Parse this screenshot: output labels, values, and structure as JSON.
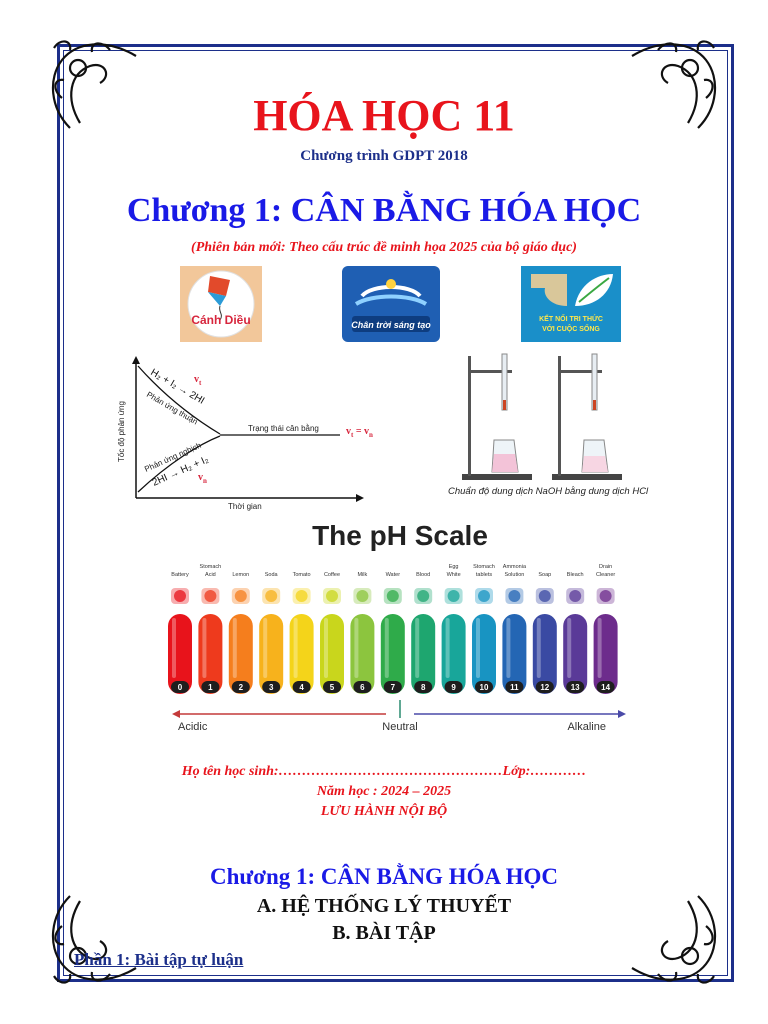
{
  "header": {
    "title": "HÓA HỌC 11",
    "subtitle": "Chương trình GDPT 2018",
    "chapter_title": "Chương 1: CÂN BẰNG HÓA HỌC",
    "version_note": "(Phiên bản mới: Theo cấu trúc đề minh họa 2025 của bộ giáo dục)"
  },
  "logos": {
    "canh_dieu": "Cánh Diều",
    "chan_troi": "Chân trời sáng tạo",
    "ket_noi_line1": "KẾT NỐI TRI THỨC",
    "ket_noi_line2": "VỚI CUỘC SỐNG"
  },
  "equilibrium_diagram": {
    "y_axis_label": "Tốc độ phản ứng",
    "x_axis_label": "Thời gian",
    "forward_label": "Phản ứng thuận",
    "reverse_label": "Phản ứng nghịch",
    "state_label": "Trạng thái cân bằng",
    "vt": "v",
    "vt_sub": "t",
    "vn": "v",
    "vn_sub": "n",
    "equality": "v",
    "equality_sub1": "t",
    "equality_mid": " = v",
    "equality_sub2": "n",
    "forward_eq": "H₂ + I₂ → 2HI",
    "reverse_eq": "2HI → H₂ + I₂"
  },
  "titration": {
    "caption": "Chuẩn độ dung dịch NaOH bằng dung dịch HCl"
  },
  "ph_scale": {
    "title": "The pH Scale",
    "acidic": "Acidic",
    "neutral": "Neutral",
    "alkaline": "Alkaline",
    "items": [
      "Battery",
      "Stomach Acid",
      "Lemon",
      "Soda",
      "Tomato",
      "Coffee",
      "Milk",
      "Water",
      "Blood",
      "Egg White",
      "Stomach tablets",
      "Ammonia Solution",
      "Soap",
      "Bleach",
      "Drain Cleaner"
    ],
    "numbers": [
      "0",
      "1",
      "2",
      "3",
      "4",
      "5",
      "6",
      "7",
      "8",
      "9",
      "10",
      "11",
      "12",
      "13",
      "14"
    ],
    "colors": [
      "#e8131b",
      "#ee3a1d",
      "#f57e1d",
      "#f7b21c",
      "#f4d41a",
      "#c9d61c",
      "#8cc53e",
      "#2fab4a",
      "#1ea66f",
      "#18a69a",
      "#1894c2",
      "#2466b4",
      "#3a4aa3",
      "#5a3a98",
      "#6d2c8c"
    ]
  },
  "footer": {
    "student_line": "Họ tên học sinh:…………………………………………Lớp:…………",
    "school_year": "Năm học : 2024 – 2025",
    "internal": "LƯU HÀNH NỘI BỘ",
    "chapter_repeat": "Chương 1: CÂN BẰNG HÓA HỌC",
    "section_a": "A. HỆ THỐNG LÝ THUYẾT",
    "section_b": "B. BÀI TẬP",
    "part1": "Phần 1: Bài tập tự luận"
  }
}
